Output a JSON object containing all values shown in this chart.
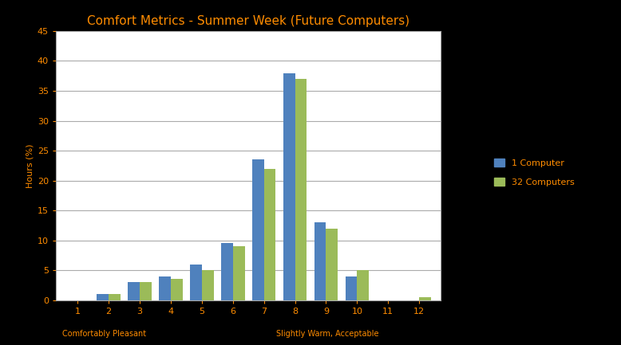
{
  "title": "Comfort Metrics - Summer Week (Future Computers)",
  "categories": [
    "1",
    "2",
    "3",
    "4",
    "5",
    "6",
    "7",
    "8",
    "9",
    "10",
    "11",
    "12"
  ],
  "series1_label": "1 Computer",
  "series2_label": "32 Computers",
  "series1_values": [
    0,
    1,
    3,
    4,
    6,
    9.5,
    23.5,
    38,
    13,
    4,
    0,
    0
  ],
  "series2_values": [
    0,
    1,
    3,
    3.5,
    5,
    9,
    22,
    37,
    12,
    5,
    0,
    0.5
  ],
  "series1_color": "#4F81BD",
  "series2_color": "#9BBB59",
  "ylabel": "Hours (%)",
  "ylim": [
    0,
    45
  ],
  "yticks": [
    0,
    5,
    10,
    15,
    20,
    25,
    30,
    35,
    40,
    45
  ],
  "xlabel_left": "Comfortably Pleasant",
  "xlabel_right": "Slightly Warm, Acceptable",
  "background_color": "#000000",
  "plot_bg_color": "#FFFFFF",
  "grid_color": "#AAAAAA",
  "title_color": "#FF8C00",
  "axis_label_color": "#FF8C00",
  "tick_label_color": "#FF8C00",
  "legend_text_color": "#FF8C00"
}
